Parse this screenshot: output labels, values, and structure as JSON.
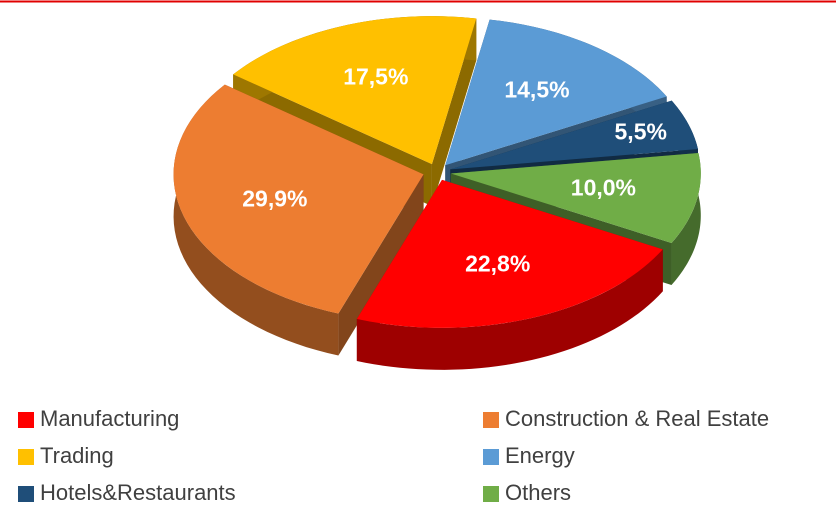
{
  "chart_data": {
    "type": "pie",
    "categories": [
      "Manufacturing",
      "Construction & Real Estate",
      "Trading",
      "Energy",
      "Hotels&Restaurants",
      "Others"
    ],
    "values": [
      22.8,
      29.9,
      17.5,
      14.5,
      5.5,
      10.0
    ],
    "value_labels": [
      "22,8%",
      "29,9%",
      "17,5%",
      "14,5%",
      "5,5%",
      "10,0%"
    ],
    "colors": [
      "#ff0000",
      "#ed7d31",
      "#ffc000",
      "#5b9bd5",
      "#1f4e79",
      "#70ad47"
    ],
    "legend": "bottom"
  }
}
